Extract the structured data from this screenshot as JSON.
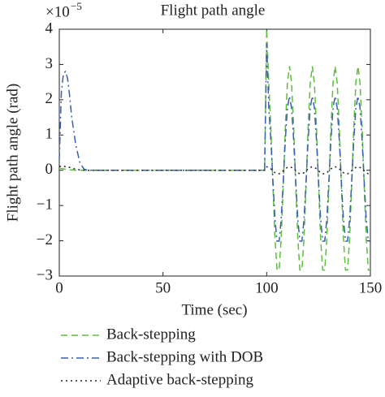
{
  "chart_data": {
    "type": "line",
    "title": "Flight path angle",
    "x_label": "Time (sec)",
    "y_label": "Flight path angle (rad)",
    "y_multiplier": {
      "base": "×10",
      "exponent": "−5"
    },
    "x": [
      0,
      1,
      2,
      3,
      4,
      5,
      6,
      8,
      10,
      12,
      14,
      20,
      30,
      40,
      50,
      60,
      70,
      80,
      90,
      95,
      99,
      100,
      101,
      102,
      103,
      104,
      105,
      106,
      107,
      108,
      109,
      110,
      111,
      112,
      113,
      114,
      115,
      116,
      117,
      118,
      119,
      120,
      121,
      122,
      123,
      124,
      125,
      126,
      127,
      128,
      129,
      130,
      131,
      132,
      133,
      134,
      135,
      136,
      137,
      138,
      139,
      140,
      141,
      142,
      143,
      144,
      145,
      146,
      147,
      148,
      149,
      150
    ],
    "series": [
      {
        "name": "Back-stepping",
        "color": "#5cbf3c",
        "dash": "dashed",
        "values": [
          0.05,
          0.05,
          0.04,
          0.03,
          0.02,
          0.01,
          0.01,
          0,
          0,
          0,
          0,
          0,
          0,
          0,
          0,
          0,
          0,
          0,
          0,
          0,
          0,
          4,
          2.48,
          1.23,
          -0.42,
          -1.93,
          -2.83,
          -2.83,
          -1.93,
          -0.42,
          1.23,
          2.48,
          2.95,
          2.48,
          1.23,
          -0.42,
          -1.93,
          -2.83,
          -2.83,
          -1.93,
          -0.42,
          1.23,
          2.48,
          2.95,
          2.48,
          1.23,
          -0.42,
          -1.93,
          -2.83,
          -2.83,
          -1.93,
          -0.42,
          1.23,
          2.48,
          2.95,
          2.48,
          1.23,
          -0.42,
          -1.93,
          -2.83,
          -2.83,
          -1.93,
          -0.42,
          1.23,
          2.48,
          2.95,
          2.48,
          1.23,
          -0.42,
          -1.93,
          -2.83,
          -2.83
        ]
      },
      {
        "name": "Back-stepping with DOB",
        "color": "#3a5fb0",
        "dash": "dashdot",
        "values": [
          0.3,
          2.2,
          2.75,
          2.8,
          2.6,
          2.1,
          1.5,
          0.7,
          0.2,
          0.03,
          0,
          0,
          0,
          0,
          0,
          0,
          0,
          0,
          0,
          0,
          0,
          3.6,
          1.77,
          0.87,
          -0.3,
          -1.38,
          -2.01,
          -2.01,
          -1.38,
          -0.3,
          0.87,
          1.77,
          2.1,
          1.77,
          0.87,
          -0.3,
          -1.38,
          -2.01,
          -2.01,
          -1.38,
          -0.3,
          0.87,
          1.77,
          2.1,
          1.77,
          0.87,
          -0.3,
          -1.38,
          -2.01,
          -2.01,
          -1.38,
          -0.3,
          0.87,
          1.77,
          2.1,
          1.77,
          0.87,
          -0.3,
          -1.38,
          -2.01,
          -2.01,
          -1.38,
          -0.3,
          0.87,
          1.77,
          2.1,
          1.77,
          0.87,
          -0.3,
          -1.38,
          -2.01,
          -2.01
        ]
      },
      {
        "name": "Adaptive back-stepping",
        "color": "#222222",
        "dash": "dotted",
        "values": [
          0.1,
          0.12,
          0.12,
          0.1,
          0.1,
          0.08,
          0.06,
          0.03,
          0.01,
          0,
          0,
          0,
          0,
          0,
          0,
          0,
          0,
          0,
          0,
          0,
          0,
          0.1,
          0.08,
          0.04,
          -0.01,
          -0.07,
          -0.1,
          -0.1,
          -0.07,
          -0.01,
          0.04,
          0.08,
          0.1,
          0.08,
          0.04,
          -0.01,
          -0.07,
          -0.1,
          -0.1,
          -0.07,
          -0.01,
          0.04,
          0.08,
          0.1,
          0.08,
          0.04,
          -0.01,
          -0.07,
          -0.1,
          -0.1,
          -0.07,
          -0.01,
          0.04,
          0.08,
          0.1,
          0.08,
          0.04,
          -0.01,
          -0.07,
          -0.1,
          -0.1,
          -0.07,
          -0.01,
          0.04,
          0.08,
          0.1,
          0.08,
          0.04,
          -0.01,
          -0.07,
          -0.1,
          -0.1
        ]
      }
    ],
    "xlim": [
      0,
      150
    ],
    "xticks": [
      0,
      50,
      100,
      150
    ],
    "ylim": [
      -3,
      4
    ],
    "yticks": [
      {
        "value": -3,
        "label": "−3"
      },
      {
        "value": -2,
        "label": "−2"
      },
      {
        "value": -1,
        "label": "−1"
      },
      0,
      1,
      2,
      3,
      4
    ],
    "grid": false,
    "legend": "below"
  }
}
